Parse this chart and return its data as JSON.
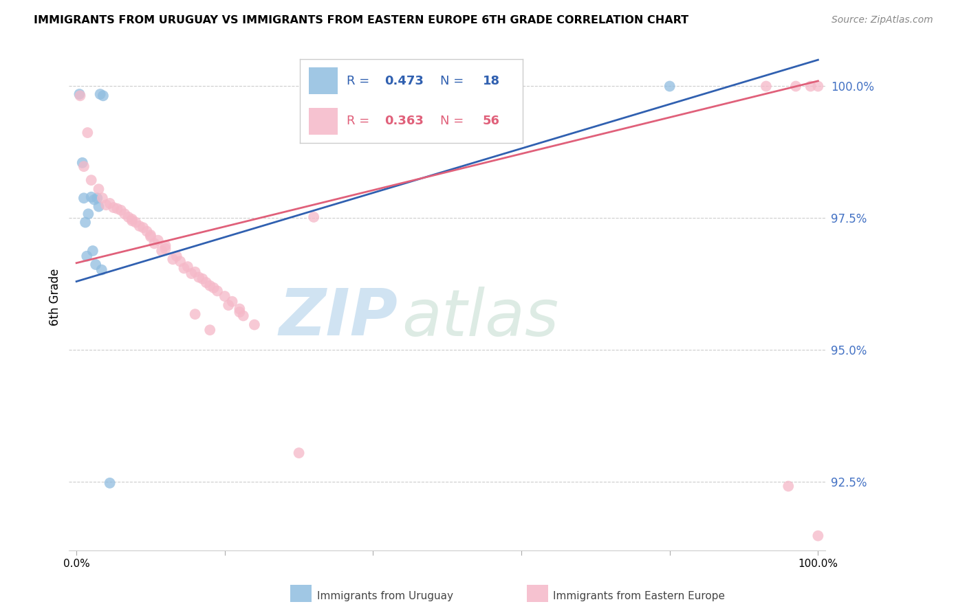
{
  "title": "IMMIGRANTS FROM URUGUAY VS IMMIGRANTS FROM EASTERN EUROPE 6TH GRADE CORRELATION CHART",
  "source": "Source: ZipAtlas.com",
  "ylabel": "6th Grade",
  "y_ticks": [
    92.5,
    95.0,
    97.5,
    100.0
  ],
  "y_min": 91.2,
  "y_max": 100.8,
  "x_min": -1.0,
  "x_max": 101.0,
  "blue_R": 0.473,
  "blue_N": 18,
  "pink_R": 0.363,
  "pink_N": 56,
  "blue_color": "#90bde0",
  "pink_color": "#f5b8c8",
  "blue_line_color": "#3060b0",
  "pink_line_color": "#e0607a",
  "watermark_zip": "ZIP",
  "watermark_atlas": "atlas",
  "blue_points_x": [
    0.4,
    3.2,
    3.6,
    0.8,
    1.0,
    2.0,
    2.4,
    2.8,
    3.0,
    1.6,
    1.2,
    2.2,
    1.4,
    2.6,
    3.4,
    4.5,
    58.0,
    80.0
  ],
  "blue_points_y": [
    99.85,
    99.85,
    99.82,
    98.55,
    97.88,
    97.9,
    97.85,
    97.88,
    97.72,
    97.58,
    97.42,
    96.88,
    96.78,
    96.62,
    96.52,
    92.48,
    100.0,
    100.0
  ],
  "pink_points_x": [
    0.5,
    1.5,
    1.0,
    2.0,
    3.0,
    3.5,
    4.5,
    5.5,
    6.0,
    7.0,
    7.5,
    8.0,
    9.0,
    9.5,
    10.0,
    11.0,
    12.0,
    13.5,
    14.0,
    15.0,
    16.0,
    17.0,
    18.0,
    19.0,
    20.0,
    21.0,
    22.0,
    10.5,
    11.5,
    13.0,
    14.5,
    5.0,
    6.5,
    8.5,
    10.0,
    15.5,
    16.5,
    17.5,
    18.5,
    20.5,
    22.5,
    24.0,
    4.0,
    7.5,
    12.0,
    22.0,
    30.0,
    16.0,
    18.0,
    32.0,
    93.0,
    97.0,
    99.0,
    100.0,
    96.0,
    100.0
  ],
  "pink_points_y": [
    99.82,
    99.12,
    98.48,
    98.22,
    98.05,
    97.88,
    97.78,
    97.68,
    97.65,
    97.52,
    97.48,
    97.42,
    97.32,
    97.25,
    97.18,
    97.08,
    96.98,
    96.78,
    96.68,
    96.58,
    96.48,
    96.35,
    96.22,
    96.12,
    96.02,
    95.92,
    95.72,
    97.02,
    96.88,
    96.72,
    96.55,
    97.7,
    97.58,
    97.35,
    97.15,
    96.45,
    96.38,
    96.28,
    96.18,
    95.85,
    95.65,
    95.48,
    97.75,
    97.45,
    96.92,
    95.78,
    93.05,
    95.68,
    95.38,
    97.52,
    100.0,
    100.0,
    100.0,
    100.0,
    92.42,
    91.48
  ],
  "blue_trend_x": [
    0,
    100
  ],
  "blue_trend_y_start": 96.3,
  "blue_trend_y_end": 100.5,
  "pink_trend_y_start": 96.65,
  "pink_trend_y_end": 100.1
}
